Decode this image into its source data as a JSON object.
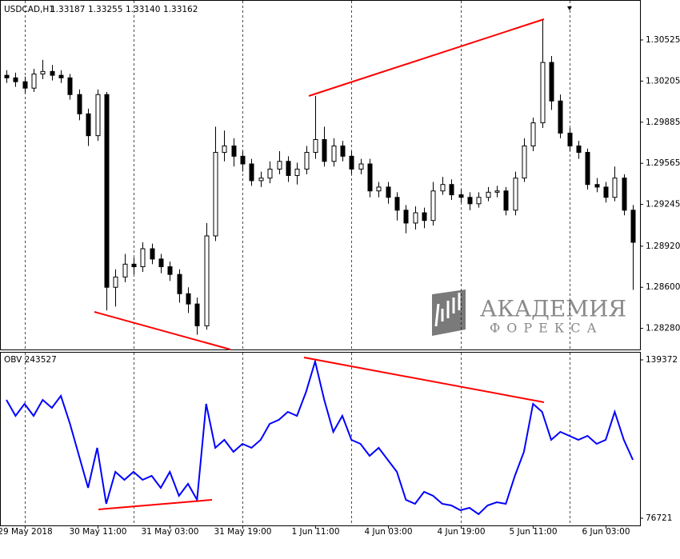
{
  "chart_data": [
    {
      "type": "candlestick",
      "title": "USDCAD,H1",
      "quote": [
        "1.33187",
        "1.33255",
        "1.33140",
        "1.33162"
      ],
      "watermark": [
        "АКАДЕМИЯ",
        "ФОРЕКСА"
      ],
      "up_color": "#ffffff",
      "down_color": "#000000",
      "ylim": [
        1.28116,
        1.30836
      ],
      "yticks": [
        1.30525,
        1.30205,
        1.29885,
        1.29565,
        1.29245,
        {
          "value": 1.2892,
          "label": "1.28920"
        },
        {
          "value": 1.286,
          "label": "1.28600"
        },
        {
          "value": 1.2828,
          "label": "1.28280"
        }
      ],
      "candles": [
        [
          1.3025,
          1.3029,
          1.3019,
          1.3023
        ],
        [
          1.3023,
          1.3027,
          1.3016,
          1.302
        ],
        [
          1.302,
          1.3024,
          1.3011,
          1.3015
        ],
        [
          1.3015,
          1.303,
          1.3012,
          1.3026
        ],
        [
          1.3026,
          1.3037,
          1.3022,
          1.3028
        ],
        [
          1.3028,
          1.3033,
          1.3021,
          1.3025
        ],
        [
          1.3025,
          1.3029,
          1.3019,
          1.3023
        ],
        [
          1.3023,
          1.3026,
          1.3006,
          1.301
        ],
        [
          1.301,
          1.3014,
          1.299,
          1.2995
        ],
        [
          1.2995,
          1.2999,
          1.297,
          1.2978
        ],
        [
          1.2978,
          1.3014,
          1.2974,
          1.301
        ],
        [
          1.301,
          1.3012,
          1.2842,
          1.286
        ],
        [
          1.286,
          1.2874,
          1.2845,
          1.2868
        ],
        [
          1.2868,
          1.2886,
          1.2864,
          1.2878
        ],
        [
          1.2878,
          1.2883,
          1.287,
          1.2876
        ],
        [
          1.2876,
          1.2895,
          1.2872,
          1.289
        ],
        [
          1.289,
          1.2894,
          1.2878,
          1.2882
        ],
        [
          1.2882,
          1.2886,
          1.2871,
          1.2876
        ],
        [
          1.2876,
          1.288,
          1.2865,
          1.287
        ],
        [
          1.287,
          1.2874,
          1.2848,
          1.2855
        ],
        [
          1.2855,
          1.286,
          1.284,
          1.2847
        ],
        [
          1.2847,
          1.2852,
          1.2823,
          1.283
        ],
        [
          1.283,
          1.291,
          1.2827,
          1.29
        ],
        [
          1.29,
          1.2985,
          1.2896,
          1.2965
        ],
        [
          1.2965,
          1.2982,
          1.2958,
          1.297
        ],
        [
          1.297,
          1.2976,
          1.2954,
          1.2962
        ],
        [
          1.2962,
          1.2966,
          1.295,
          1.2956
        ],
        [
          1.2956,
          1.296,
          1.2939,
          1.2943
        ],
        [
          1.2943,
          1.295,
          1.2938,
          1.2945
        ],
        [
          1.2945,
          1.2958,
          1.2941,
          1.2952
        ],
        [
          1.2952,
          1.2966,
          1.2948,
          1.2958
        ],
        [
          1.2958,
          1.2962,
          1.2942,
          1.2947
        ],
        [
          1.2947,
          1.2957,
          1.294,
          1.2952
        ],
        [
          1.2952,
          1.297,
          1.2948,
          1.2965
        ],
        [
          1.2965,
          1.3009,
          1.296,
          1.2975
        ],
        [
          1.2975,
          1.2985,
          1.2954,
          1.2958
        ],
        [
          1.2958,
          1.2976,
          1.2954,
          1.297
        ],
        [
          1.297,
          1.2974,
          1.2958,
          1.2962
        ],
        [
          1.2962,
          1.2966,
          1.2948,
          1.2952
        ],
        [
          1.2952,
          1.296,
          1.2948,
          1.2956
        ],
        [
          1.2956,
          1.296,
          1.293,
          1.2935
        ],
        [
          1.2935,
          1.2942,
          1.293,
          1.2938
        ],
        [
          1.2938,
          1.2942,
          1.2925,
          1.293
        ],
        [
          1.293,
          1.2934,
          1.2912,
          1.292
        ],
        [
          1.292,
          1.2924,
          1.2902,
          1.291
        ],
        [
          1.291,
          1.2923,
          1.2905,
          1.2918
        ],
        [
          1.2918,
          1.2922,
          1.2906,
          1.2912
        ],
        [
          1.2912,
          1.2942,
          1.2908,
          1.2935
        ],
        [
          1.2935,
          1.2946,
          1.2932,
          1.294
        ],
        [
          1.294,
          1.2944,
          1.2928,
          1.2932
        ],
        [
          1.2932,
          1.2936,
          1.2926,
          1.293
        ],
        [
          1.293,
          1.2934,
          1.292,
          1.2925
        ],
        [
          1.2925,
          1.2934,
          1.2922,
          1.293
        ],
        [
          1.293,
          1.2938,
          1.2927,
          1.2934
        ],
        [
          1.2934,
          1.2939,
          1.293,
          1.2935
        ],
        [
          1.2935,
          1.2938,
          1.2916,
          1.292
        ],
        [
          1.292,
          1.295,
          1.2916,
          1.2945
        ],
        [
          1.2945,
          1.2976,
          1.2942,
          1.297
        ],
        [
          1.297,
          1.2992,
          1.2966,
          1.2988
        ],
        [
          1.2988,
          1.3068,
          1.2984,
          1.3035
        ],
        [
          1.3035,
          1.304,
          1.2998,
          1.3005
        ],
        [
          1.3005,
          1.301,
          1.2976,
          1.298
        ],
        [
          1.298,
          1.2984,
          1.2966,
          1.297
        ],
        [
          1.297,
          1.2974,
          1.296,
          1.2965
        ],
        [
          1.2965,
          1.2968,
          1.2936,
          1.294
        ],
        [
          1.294,
          1.2945,
          1.2934,
          1.2938
        ],
        [
          1.2938,
          1.2942,
          1.2926,
          1.293
        ],
        [
          1.293,
          1.2954,
          1.2927,
          1.2945
        ],
        [
          1.2945,
          1.2948,
          1.2916,
          1.292
        ],
        [
          1.292,
          1.2924,
          1.2858,
          1.2895
        ]
      ]
    },
    {
      "type": "line",
      "title": "OBV 243527",
      "color": "#0000ff",
      "ylim": [
        76721,
        139372
      ],
      "yticks": [
        139372,
        76721
      ],
      "categories": [
        null,
        null,
        "29 May 2018",
        null,
        null,
        null,
        null,
        null,
        null,
        null,
        "30 May 11:00",
        null,
        null,
        null,
        null,
        null,
        null,
        null,
        "31 May 03:00",
        null,
        null,
        null,
        null,
        null,
        null,
        null,
        "31 May 19:00",
        null,
        null,
        null,
        null,
        null,
        null,
        null,
        "1 Jun 11:00",
        null,
        null,
        null,
        null,
        null,
        null,
        null,
        "4 Jun 03:00",
        null,
        null,
        null,
        null,
        null,
        null,
        null,
        "4 Jun 19:00",
        null,
        null,
        null,
        null,
        null,
        null,
        null,
        "5 Jun 11:00",
        null,
        null,
        null,
        null,
        null,
        null,
        null,
        "6 Jun 03:00",
        null,
        null,
        null
      ],
      "values": [
        123552,
        117224,
        121970,
        117224,
        123552,
        120388,
        125134,
        114060,
        101404,
        88748,
        104568,
        82420,
        95076,
        91912,
        95076,
        91912,
        93494,
        88748,
        95076,
        85584,
        90330,
        84002,
        121970,
        104568,
        107732,
        102986,
        106150,
        104568,
        107732,
        114060,
        115642,
        118806,
        117224,
        126716,
        138739,
        123552,
        110896,
        117224,
        107732,
        106150,
        101404,
        104568,
        99822,
        95076,
        84002,
        82420,
        87166,
        85584,
        82420,
        81787,
        79889,
        80838,
        78307,
        81787,
        83053,
        82420,
        93494,
        102986,
        121970,
        118806,
        107732,
        110896,
        109314,
        107732,
        109314,
        106150,
        107732,
        118806,
        107732,
        99822
      ]
    }
  ]
}
